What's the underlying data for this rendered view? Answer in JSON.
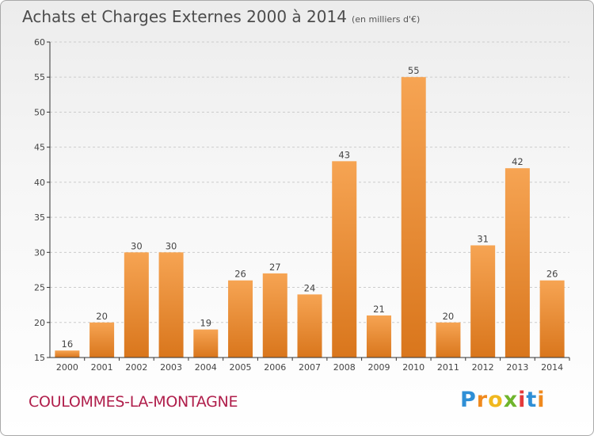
{
  "title": "Achats et Charges Externes 2000 à 2014",
  "unit": "(en milliers d'€)",
  "commune": "COULOMMES-LA-MONTAGNE",
  "logo": {
    "letters": [
      "P",
      "r",
      "o",
      "x",
      "i",
      "t",
      "i"
    ],
    "colors": [
      "#2f8fd6",
      "#f08a1e",
      "#f0b81e",
      "#6fb52c",
      "#e43a3a",
      "#2f8fd6",
      "#f08a1e"
    ]
  },
  "colors": {
    "bar_top": "#f6a453",
    "bar_bottom": "#d9761c",
    "axis": "#333333",
    "grid": "#cccccc"
  },
  "chart_data": {
    "type": "bar",
    "categories": [
      "2000",
      "2001",
      "2002",
      "2003",
      "2004",
      "2005",
      "2006",
      "2007",
      "2008",
      "2009",
      "2010",
      "2011",
      "2012",
      "2013",
      "2014"
    ],
    "values": [
      16,
      20,
      30,
      30,
      19,
      26,
      27,
      24,
      43,
      21,
      55,
      20,
      31,
      42,
      26
    ],
    "ylim": [
      15,
      60
    ],
    "yticks": [
      15,
      20,
      25,
      30,
      35,
      40,
      45,
      50,
      55,
      60
    ],
    "grid": "horizontal dashed",
    "legend": "none"
  }
}
